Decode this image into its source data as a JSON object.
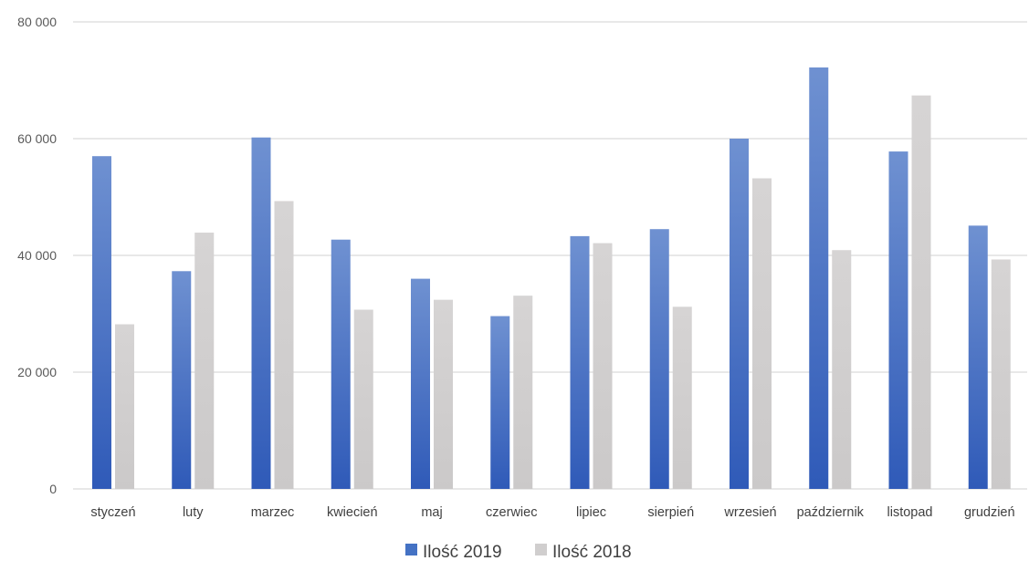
{
  "chart_data": {
    "type": "bar",
    "categories": [
      "styczeń",
      "luty",
      "marzec",
      "kwiecień",
      "maj",
      "czerwiec",
      "lipiec",
      "sierpień",
      "wrzesień",
      "październik",
      "listopad",
      "grudzień"
    ],
    "series": [
      {
        "name": "Ilość 2019",
        "color": "#4472c4",
        "values": [
          57000,
          37300,
          60200,
          42700,
          36000,
          29600,
          43300,
          44500,
          60000,
          72200,
          57800,
          45100
        ]
      },
      {
        "name": "Ilość 2018",
        "color": "#d0cece",
        "values": [
          28200,
          43900,
          49300,
          30700,
          32400,
          33100,
          42100,
          31200,
          53200,
          40900,
          67400,
          39300
        ]
      }
    ],
    "ylim": [
      0,
      80000
    ],
    "yticks": [
      0,
      20000,
      40000,
      60000,
      80000
    ],
    "ytick_labels": [
      "0",
      "20 000",
      "40 000",
      "60 000",
      "80 000"
    ],
    "grid": true,
    "legend_position": "bottom",
    "title": "",
    "xlabel": "",
    "ylabel": ""
  }
}
